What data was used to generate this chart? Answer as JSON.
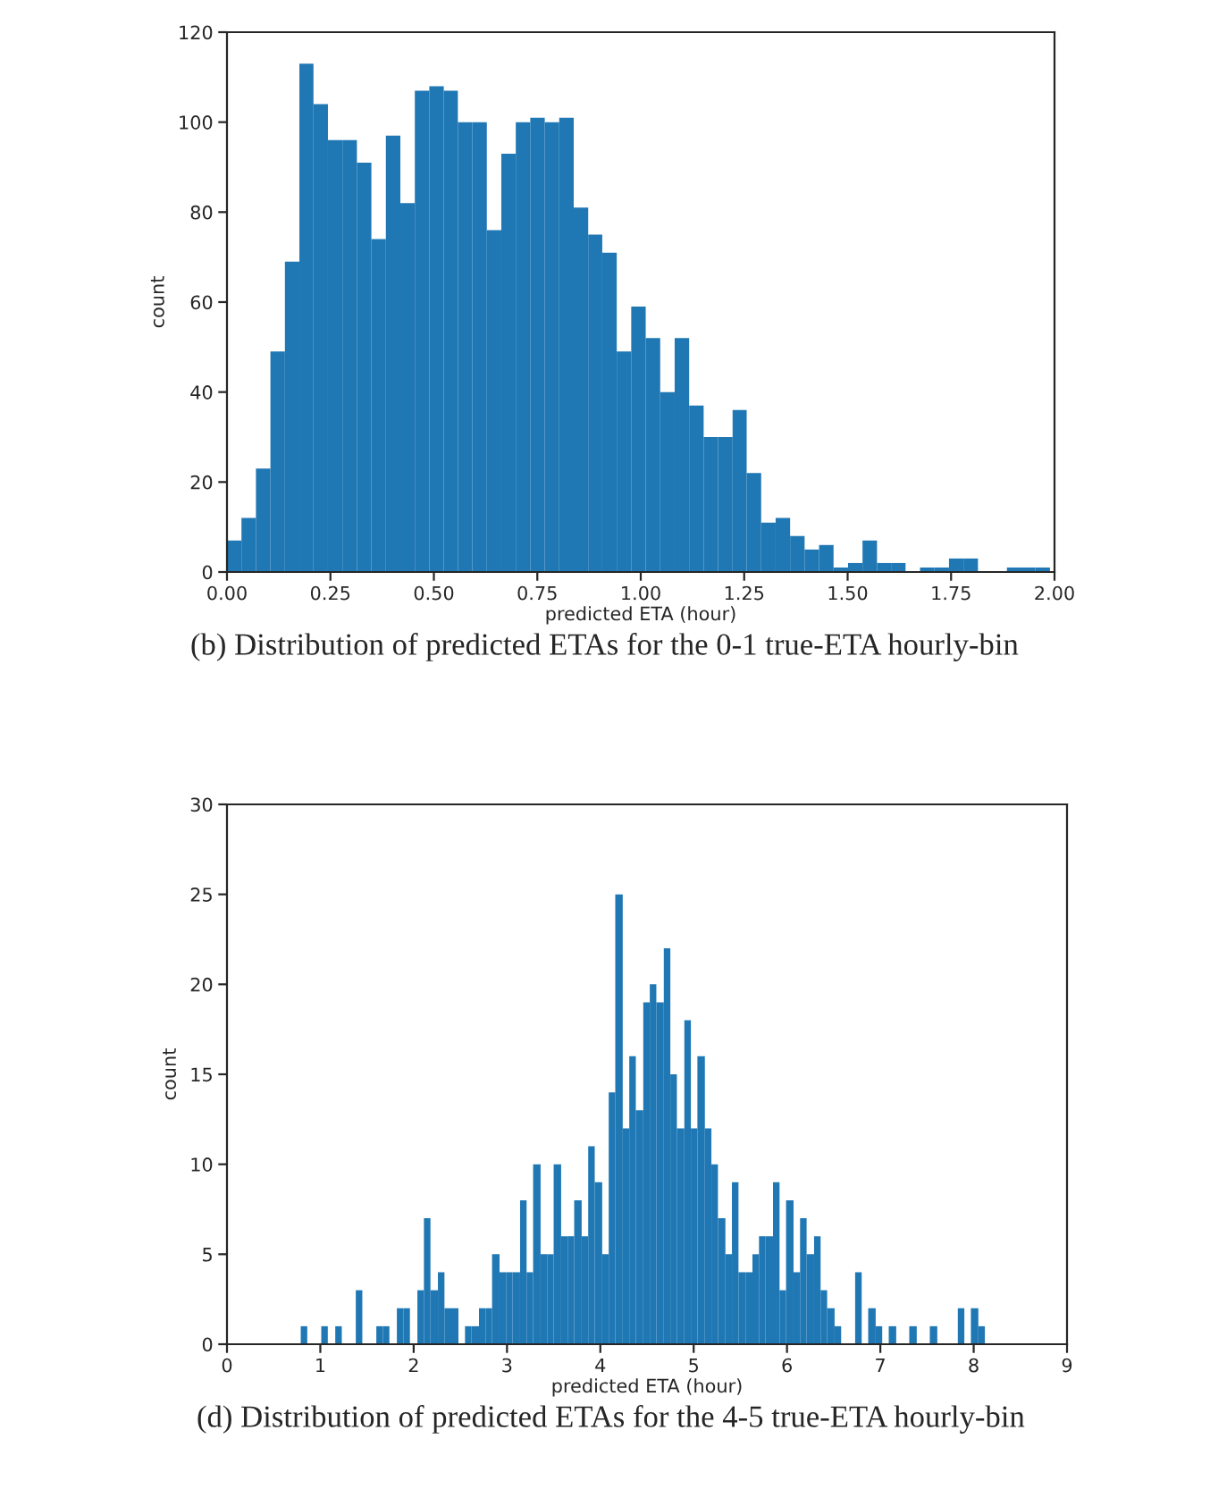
{
  "chart_data": [
    {
      "type": "histogram",
      "xlabel": "predicted ETA (hour)",
      "ylabel": "count",
      "color": "#1f77b4",
      "bins": [
        0,
        0.035,
        0.07,
        0.105,
        0.14,
        0.175,
        0.209,
        0.244,
        0.279,
        0.314,
        0.349,
        0.384,
        0.419,
        0.454,
        0.489,
        0.524,
        0.558,
        0.593,
        0.628,
        0.663,
        0.698,
        0.733,
        0.768,
        0.803,
        0.838,
        0.873,
        0.907,
        0.942,
        0.977,
        1.012,
        1.047,
        1.082,
        1.117,
        1.152,
        1.187,
        1.222,
        1.256,
        1.291,
        1.326,
        1.361,
        1.396,
        1.431,
        1.466,
        1.501,
        1.536,
        1.571,
        1.605,
        1.64,
        1.675,
        1.71,
        1.745,
        1.78,
        1.815,
        1.885,
        1.92,
        1.954,
        1.989
      ],
      "values": [
        7,
        12,
        23,
        49,
        69,
        113,
        104,
        96,
        96,
        91,
        74,
        97,
        82,
        107,
        108,
        107,
        100,
        100,
        76,
        93,
        100,
        101,
        100,
        101,
        81,
        75,
        71,
        49,
        59,
        52,
        40,
        52,
        37,
        30,
        30,
        36,
        22,
        11,
        12,
        8,
        5,
        6,
        1,
        2,
        7,
        2,
        2,
        0,
        1,
        1,
        3,
        3,
        0,
        1,
        1,
        1
      ],
      "xlim": [
        0,
        2
      ],
      "xticks": [
        {
          "value": 0,
          "label": "0.00"
        },
        {
          "value": 0.25,
          "label": "0.25"
        },
        {
          "value": 0.5,
          "label": "0.50"
        },
        {
          "value": 0.75,
          "label": "0.75"
        },
        {
          "value": 1,
          "label": "1.00"
        },
        {
          "value": 1.25,
          "label": "1.25"
        },
        {
          "value": 1.5,
          "label": "1.50"
        },
        {
          "value": 1.75,
          "label": "1.75"
        },
        {
          "value": 2,
          "label": "2.00"
        }
      ],
      "ylim": [
        0,
        120
      ],
      "yticks": [
        0,
        20,
        40,
        60,
        80,
        100,
        120
      ],
      "annotations": [
        "(b) Distribution of predicted ETAs for the 0-1 true-ETA hourly-bin"
      ]
    },
    {
      "type": "histogram",
      "xlabel": "predicted ETA (hour)",
      "ylabel": "count",
      "color": "#1f77b4",
      "bins": [
        0.79,
        0.86,
        1.01,
        1.08,
        1.16,
        1.23,
        1.38,
        1.45,
        1.6,
        1.67,
        1.74,
        1.82,
        1.89,
        1.96,
        2.04,
        2.11,
        2.18,
        2.26,
        2.33,
        2.48,
        2.55,
        2.62,
        2.7,
        2.77,
        2.84,
        2.92,
        2.99,
        3.06,
        3.14,
        3.21,
        3.28,
        3.36,
        3.43,
        3.5,
        3.58,
        3.65,
        3.72,
        3.8,
        3.87,
        3.94,
        4.02,
        4.09,
        4.16,
        4.24,
        4.31,
        4.38,
        4.46,
        4.53,
        4.6,
        4.68,
        4.75,
        4.82,
        4.9,
        4.97,
        5.04,
        5.12,
        5.19,
        5.26,
        5.34,
        5.41,
        5.48,
        5.56,
        5.63,
        5.7,
        5.77,
        5.85,
        5.92,
        5.99,
        6.07,
        6.14,
        6.21,
        6.29,
        6.36,
        6.43,
        6.51,
        6.58,
        6.73,
        6.8,
        6.87,
        6.95,
        7.02,
        7.09,
        7.17,
        7.31,
        7.39,
        7.53,
        7.61,
        7.83,
        7.9,
        7.97,
        8.05,
        8.12
      ],
      "values": [
        1,
        0,
        1,
        0,
        1,
        0,
        3,
        0,
        1,
        1,
        0,
        2,
        2,
        0,
        3,
        7,
        3,
        4,
        2,
        0,
        1,
        1,
        2,
        2,
        5,
        4,
        4,
        4,
        8,
        4,
        10,
        5,
        5,
        10,
        6,
        6,
        8,
        6,
        11,
        9,
        5,
        14,
        25,
        12,
        16,
        13,
        19,
        20,
        19,
        22,
        15,
        12,
        18,
        12,
        16,
        12,
        10,
        7,
        5,
        9,
        4,
        4,
        5,
        6,
        6,
        9,
        3,
        8,
        4,
        7,
        5,
        6,
        3,
        2,
        1,
        0,
        4,
        0,
        2,
        1,
        0,
        1,
        0,
        1,
        0,
        1,
        0,
        2,
        0,
        2,
        1
      ],
      "xlim": [
        0,
        9
      ],
      "xticks": [
        0,
        1,
        2,
        3,
        4,
        5,
        6,
        7,
        8,
        9
      ],
      "ylim": [
        0,
        30
      ],
      "yticks": [
        0,
        5,
        10,
        15,
        20,
        25,
        30
      ],
      "annotations": [
        "(d) Distribution of predicted ETAs for the 4-5 true-ETA hourly-bin"
      ]
    }
  ]
}
